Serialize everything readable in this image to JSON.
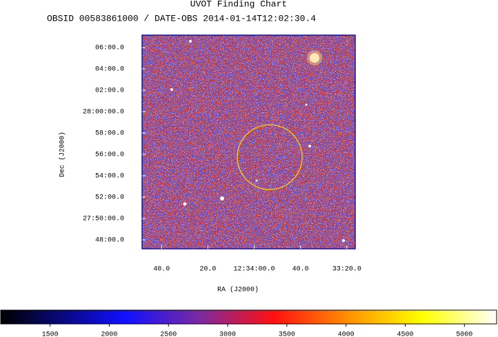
{
  "chart_data": {
    "type": "image",
    "title": "UVOT Finding Chart",
    "subtitle": "OBSID 00583861000 / DATE-OBS 2014-01-14T12:02:30.4",
    "xlabel": "RA (J2000)",
    "ylabel": "Dec (J2000)",
    "xlim": [
      188.7017,
      188.3183
    ],
    "ylim": [
      27.786,
      28.1194
    ],
    "xticks": [
      {
        "value": 188.6667,
        "label": "40.0"
      },
      {
        "value": 188.5833,
        "label": "20.0"
      },
      {
        "value": 188.5,
        "label": "12:34:00.0"
      },
      {
        "value": 188.4167,
        "label": "40.0"
      },
      {
        "value": 188.3333,
        "label": "33:20.0"
      }
    ],
    "yticks": [
      {
        "value": 28.1,
        "label": "06:00.0"
      },
      {
        "value": 28.0667,
        "label": "04:00.0"
      },
      {
        "value": 28.0333,
        "label": "02:00.0"
      },
      {
        "value": 28.0,
        "label": "28:00:00.0"
      },
      {
        "value": 27.9667,
        "label": "58:00.0"
      },
      {
        "value": 27.9333,
        "label": "56:00.0"
      },
      {
        "value": 27.9,
        "label": "54:00.0"
      },
      {
        "value": 27.8667,
        "label": "52:00.0"
      },
      {
        "value": 27.8333,
        "label": "27:50:00.0"
      },
      {
        "value": 27.8,
        "label": "48:00.0"
      }
    ],
    "colorbar": {
      "clim": [
        1083,
        5272
      ],
      "ticks": [
        1500,
        2000,
        2500,
        3000,
        3500,
        4000,
        4500,
        5000
      ]
    }
  }
}
